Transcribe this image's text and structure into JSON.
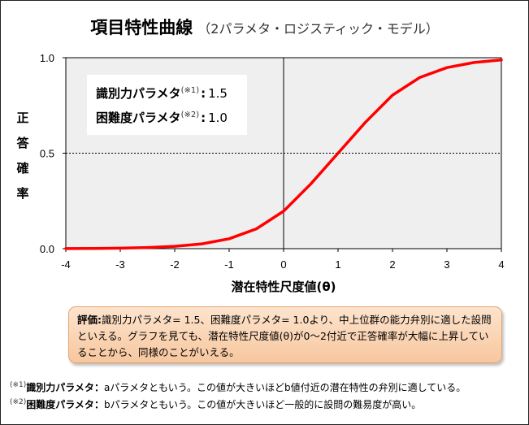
{
  "title": {
    "main": "項目特性曲線",
    "sub": "（2パラメタ・ロジスティック・モデル）"
  },
  "chart_data": {
    "type": "line",
    "model": "2PL logistic",
    "xlabel": "潜在特性尺度値(θ)",
    "ylabel": "正答確率",
    "xlim": [
      -4,
      4
    ],
    "ylim": [
      0,
      1
    ],
    "x_ticks": [
      "-4",
      "-3",
      "-2",
      "-1",
      "0",
      "1",
      "2",
      "3",
      "4"
    ],
    "y_ticks": [
      "0.0",
      "0.5",
      "1.0"
    ],
    "reference_lines": [
      {
        "orientation": "horizontal",
        "y": 0.5,
        "style": "dashed"
      },
      {
        "orientation": "vertical",
        "x": 0,
        "style": "solid"
      }
    ],
    "series": [
      {
        "color": "#ff0000",
        "x": [
          -4,
          -3.5,
          -3,
          -2.5,
          -2,
          -1.5,
          -1,
          -0.5,
          0,
          0.5,
          1,
          1.5,
          2,
          2.5,
          3,
          3.5,
          4
        ],
        "y": [
          0.0006,
          0.0013,
          0.0027,
          0.0058,
          0.0122,
          0.0253,
          0.052,
          0.104,
          0.196,
          0.339,
          0.5,
          0.661,
          0.804,
          0.896,
          0.948,
          0.975,
          0.988
        ]
      }
    ],
    "params": {
      "a": 1.5,
      "b": 1.0
    }
  },
  "params_box": {
    "discrimination": {
      "label": "識別力パラメタ",
      "note": "(※1)",
      "value": "1.5"
    },
    "difficulty": {
      "label": "困難度パラメタ",
      "note": "(※2)",
      "value": "1.0"
    }
  },
  "evaluation": {
    "label": "評価:",
    "text": "識別力パラメタ= 1.5、困難度パラメタ= 1.0より、中上位群の能力弁別に適した設問といえる。グラフを見ても、潜在特性尺度値(θ)が0～2付近で正答確率が大幅に上昇していることから、同様のことがいえる。"
  },
  "notes": [
    {
      "mark": "(※1)",
      "name": "識別力パラメタ：",
      "text": "aパラメタともいう。この値が大きいほどb値付近の潜在特性の弁別に適している。"
    },
    {
      "mark": "(※2)",
      "name": "困難度パラメタ：",
      "text": "bパラメタともいう。この値が大きいほど一般的に設問の難易度が高い。"
    }
  ]
}
